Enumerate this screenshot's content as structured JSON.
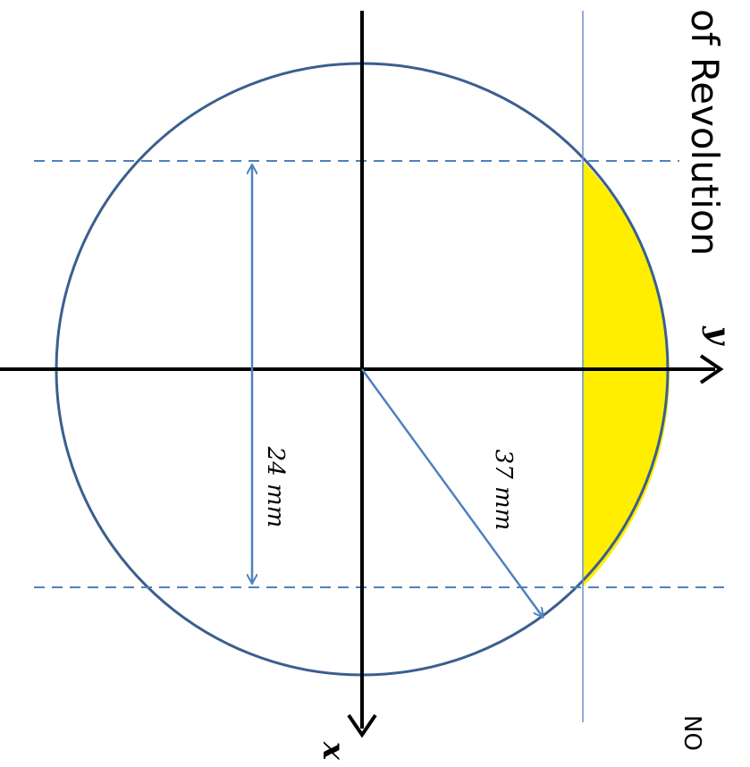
{
  "title": "of Revolution",
  "axes": {
    "x_label": "x",
    "y_label": "y"
  },
  "dimensions": {
    "chord_label": "24 mm",
    "radius_label": "37 mm"
  },
  "note": "NO",
  "colors": {
    "circle": "#3a5f8f",
    "axis": "#000000",
    "dashed": "#4f81bd",
    "arrow": "#4f81bd",
    "segment_fill": "#ffee00",
    "guide_line": "#6d8fd0"
  }
}
